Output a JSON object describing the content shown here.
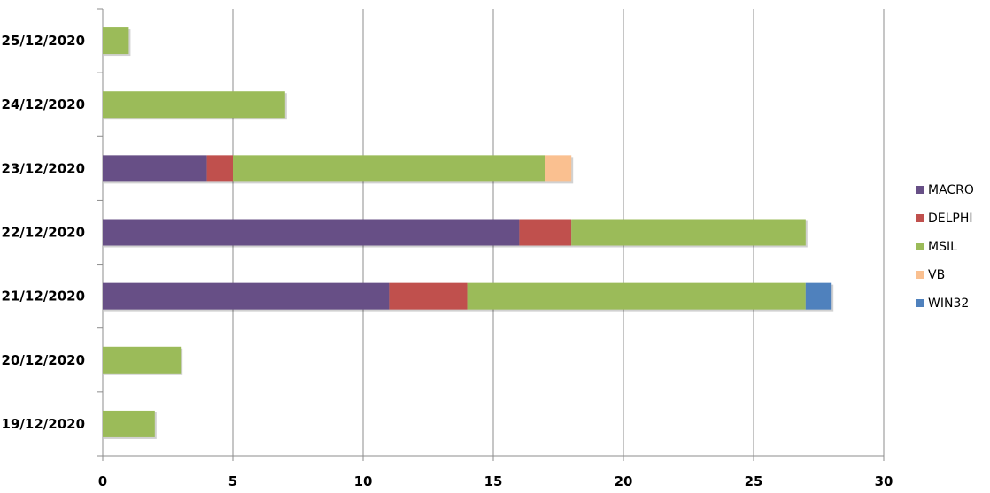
{
  "chart_data": {
    "type": "bar",
    "orientation": "horizontal",
    "stacked": true,
    "categories": [
      "19/12/2020",
      "20/12/2020",
      "21/12/2020",
      "22/12/2020",
      "23/12/2020",
      "24/12/2020",
      "25/12/2020"
    ],
    "series": [
      {
        "name": "MACRO",
        "color": "#674f86",
        "values": [
          0,
          0,
          11,
          16,
          4,
          0,
          0
        ]
      },
      {
        "name": "DELPHI",
        "color": "#c0504d",
        "values": [
          0,
          0,
          3,
          2,
          1,
          0,
          0
        ]
      },
      {
        "name": "MSIL",
        "color": "#9bbb59",
        "values": [
          2,
          3,
          13,
          9,
          12,
          7,
          1
        ]
      },
      {
        "name": "VB",
        "color": "#fac090",
        "values": [
          0,
          0,
          0,
          0,
          1,
          0,
          0
        ]
      },
      {
        "name": "WIN32",
        "color": "#4f81bd",
        "values": [
          0,
          0,
          1,
          0,
          0,
          0,
          0
        ]
      }
    ],
    "xlim": [
      0,
      30
    ],
    "x_ticks": [
      0,
      5,
      10,
      15,
      20,
      25,
      30
    ],
    "grid": "vertical",
    "legend": "right"
  }
}
